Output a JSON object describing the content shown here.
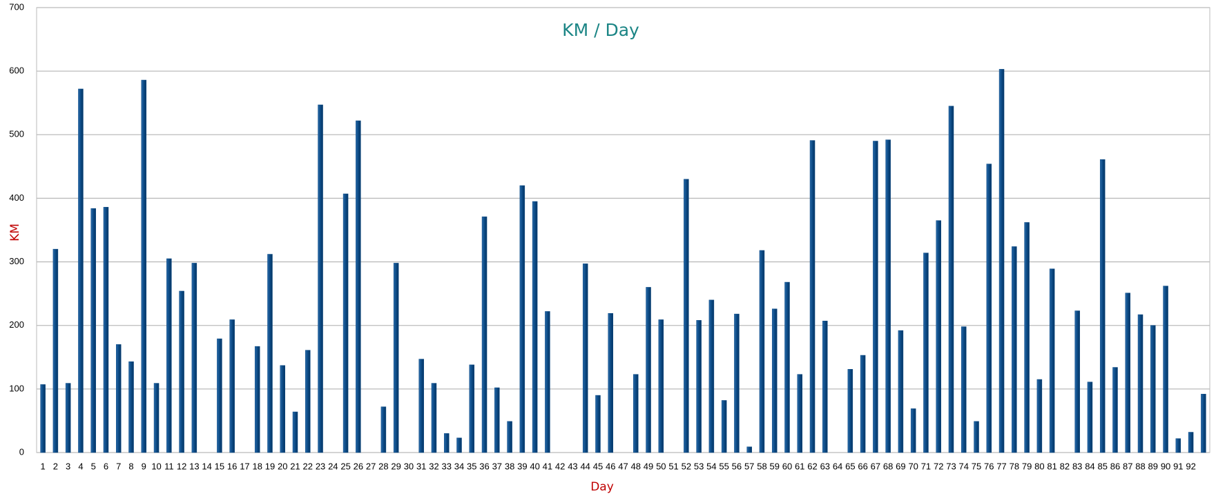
{
  "chart_data": {
    "type": "bar",
    "title": "KM / Day",
    "x_label": "Day",
    "y_label": "KM",
    "categories": [
      1,
      2,
      3,
      4,
      5,
      6,
      7,
      8,
      9,
      10,
      11,
      12,
      13,
      14,
      15,
      16,
      17,
      18,
      19,
      20,
      21,
      22,
      23,
      24,
      25,
      26,
      27,
      28,
      29,
      30,
      31,
      32,
      33,
      34,
      35,
      36,
      37,
      38,
      39,
      40,
      41,
      42,
      43,
      44,
      45,
      46,
      47,
      48,
      49,
      50,
      51,
      52,
      53,
      54,
      55,
      56,
      57,
      58,
      59,
      60,
      61,
      62,
      63,
      64,
      65,
      66,
      67,
      68,
      69,
      70,
      71,
      72,
      73,
      74,
      75,
      76,
      77,
      78,
      79,
      80,
      81,
      82,
      83,
      84,
      85,
      86,
      87,
      88,
      89,
      90,
      91,
      92,
      null
    ],
    "values": [
      107,
      320,
      109,
      572,
      384,
      386,
      170,
      143,
      586,
      109,
      305,
      254,
      298,
      0,
      179,
      209,
      0,
      167,
      312,
      137,
      64,
      161,
      547,
      0,
      407,
      522,
      0,
      72,
      298,
      0,
      147,
      109,
      30,
      23,
      138,
      371,
      102,
      49,
      420,
      395,
      222,
      0,
      0,
      297,
      90,
      219,
      0,
      123,
      260,
      209,
      0,
      430,
      208,
      240,
      82,
      218,
      9,
      318,
      226,
      268,
      123,
      491,
      207,
      0,
      131,
      153,
      490,
      492,
      192,
      69,
      314,
      365,
      545,
      198,
      49,
      454,
      603,
      324,
      362,
      115,
      289,
      0,
      223,
      111,
      461,
      134,
      251,
      217,
      200,
      262,
      22,
      32,
      92
    ],
    "color": "#0b4a85",
    "ylim": [
      0,
      700
    ],
    "yticks": [
      0,
      100,
      200,
      300,
      400,
      500,
      600,
      700
    ],
    "grid": true
  }
}
